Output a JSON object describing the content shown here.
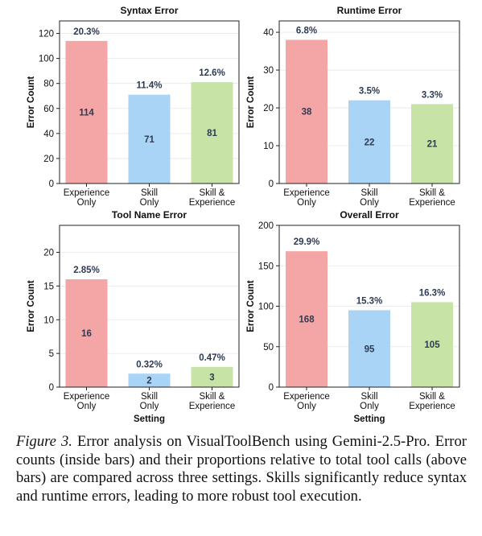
{
  "chart_data": [
    {
      "type": "bar",
      "title": "Syntax Error",
      "ylabel": "Error Count",
      "xlabel": "",
      "categories": [
        [
          "Experience",
          "Only"
        ],
        [
          "Skill",
          "Only"
        ],
        [
          "Skill &",
          "Experience"
        ]
      ],
      "values": [
        114,
        71,
        81
      ],
      "percent_labels": [
        "20.3%",
        "11.4%",
        "12.6%"
      ],
      "ylim": [
        0,
        130
      ],
      "yticks": [
        0,
        20,
        40,
        60,
        80,
        100,
        120
      ],
      "grid": true
    },
    {
      "type": "bar",
      "title": "Runtime Error",
      "ylabel": "Error Count",
      "xlabel": "",
      "categories": [
        [
          "Experience",
          "Only"
        ],
        [
          "Skill",
          "Only"
        ],
        [
          "Skill &",
          "Experience"
        ]
      ],
      "values": [
        38,
        22,
        21
      ],
      "percent_labels": [
        "6.8%",
        "3.5%",
        "3.3%"
      ],
      "ylim": [
        0,
        43
      ],
      "yticks": [
        0,
        10,
        20,
        30,
        40
      ],
      "grid": true
    },
    {
      "type": "bar",
      "title": "Tool Name Error",
      "ylabel": "Error Count",
      "xlabel": "Setting",
      "categories": [
        [
          "Experience",
          "Only"
        ],
        [
          "Skill",
          "Only"
        ],
        [
          "Skill &",
          "Experience"
        ]
      ],
      "values": [
        16,
        2,
        3
      ],
      "percent_labels": [
        "2.85%",
        "0.32%",
        "0.47%"
      ],
      "ylim": [
        0,
        24
      ],
      "yticks": [
        0,
        5,
        10,
        15,
        20
      ],
      "grid": true
    },
    {
      "type": "bar",
      "title": "Overall Error",
      "ylabel": "Error Count",
      "xlabel": "Setting",
      "categories": [
        [
          "Experience",
          "Only"
        ],
        [
          "Skill",
          "Only"
        ],
        [
          "Skill &",
          "Experience"
        ]
      ],
      "values": [
        168,
        95,
        105
      ],
      "percent_labels": [
        "29.9%",
        "15.3%",
        "16.3%"
      ],
      "ylim": [
        0,
        200
      ],
      "yticks": [
        0,
        50,
        100,
        150,
        200
      ],
      "grid": true
    }
  ],
  "bar_colors": [
    "#f4a6a6",
    "#a9d4f5",
    "#c8e3a6"
  ],
  "caption": {
    "label": "Figure 3.",
    "text": "Error analysis on VisualToolBench using Gemini-2.5-Pro. Error counts (inside bars) and their proportions relative to total tool calls (above bars) are compared across three settings. Skills significantly reduce syntax and runtime errors, leading to more robust tool execution."
  }
}
